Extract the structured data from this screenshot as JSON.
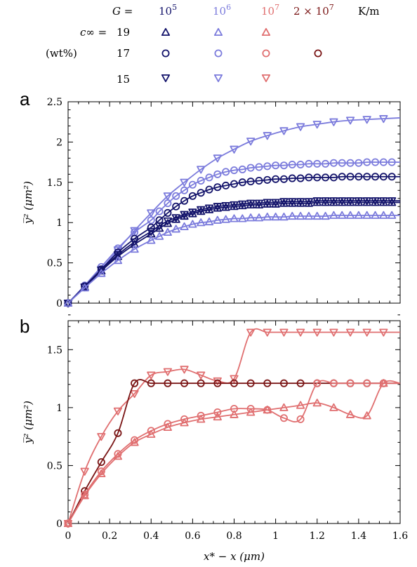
{
  "colors": {
    "G1e5": "#14146b",
    "G1e6": "#7b7bdc",
    "G1e7": "#e06f70",
    "G2e7": "#7a1515"
  },
  "legend": {
    "g_label": "G =",
    "g_values": [
      "10^5",
      "10^6",
      "10^7",
      "2 × 10^7"
    ],
    "g_unit": "K/m",
    "c_label": "c∞ = ",
    "c_unit": "(wt%)",
    "c_values": [
      "19",
      "17",
      "15"
    ]
  },
  "chart_data": [
    {
      "type": "line",
      "panel": "a",
      "ylabel": "y̅² (μm²)",
      "xlim": [
        0,
        1.6
      ],
      "ylim": [
        0,
        2.5
      ],
      "yticks": [
        "0",
        "0.5",
        "1",
        "1.5",
        "2",
        "2.5"
      ],
      "grid": false,
      "series": [
        {
          "G": "10^6",
          "c": "15",
          "marker": "tri-down",
          "x": [
            0,
            0.08,
            0.16,
            0.24,
            0.32,
            0.4,
            0.48,
            0.56,
            0.64,
            0.72,
            0.8,
            0.88,
            0.96,
            1.04,
            1.12,
            1.2,
            1.28,
            1.36,
            1.44,
            1.52,
            1.6
          ],
          "values": [
            0,
            0.2,
            0.42,
            0.66,
            0.9,
            1.12,
            1.33,
            1.5,
            1.66,
            1.8,
            1.91,
            2.01,
            2.08,
            2.14,
            2.19,
            2.22,
            2.25,
            2.27,
            2.28,
            2.29,
            2.3
          ]
        },
        {
          "G": "10^6",
          "c": "17",
          "marker": "circle",
          "x": [
            0,
            0.08,
            0.16,
            0.24,
            0.32,
            0.4,
            0.44,
            0.48,
            0.52,
            0.56,
            0.6,
            0.64,
            0.68,
            0.72,
            0.76,
            0.8,
            0.84,
            0.88,
            0.92,
            0.96,
            1.0,
            1.04,
            1.08,
            1.12,
            1.16,
            1.2,
            1.24,
            1.28,
            1.32,
            1.36,
            1.4,
            1.44,
            1.48,
            1.52,
            1.56,
            1.6
          ],
          "values": [
            0,
            0.22,
            0.45,
            0.68,
            0.88,
            1.03,
            1.14,
            1.24,
            1.33,
            1.4,
            1.47,
            1.52,
            1.56,
            1.6,
            1.63,
            1.65,
            1.66,
            1.68,
            1.69,
            1.7,
            1.71,
            1.71,
            1.72,
            1.72,
            1.73,
            1.73,
            1.73,
            1.74,
            1.74,
            1.74,
            1.74,
            1.75,
            1.75,
            1.75,
            1.75,
            1.75
          ]
        },
        {
          "G": "10^5",
          "c": "17",
          "marker": "circle",
          "x": [
            0,
            0.08,
            0.16,
            0.24,
            0.32,
            0.4,
            0.44,
            0.48,
            0.52,
            0.56,
            0.6,
            0.64,
            0.68,
            0.72,
            0.76,
            0.8,
            0.84,
            0.88,
            0.92,
            0.96,
            1.0,
            1.04,
            1.08,
            1.12,
            1.16,
            1.2,
            1.24,
            1.28,
            1.32,
            1.36,
            1.4,
            1.44,
            1.48,
            1.52,
            1.56,
            1.6
          ],
          "values": [
            0,
            0.21,
            0.42,
            0.63,
            0.8,
            0.94,
            1.03,
            1.12,
            1.2,
            1.27,
            1.33,
            1.37,
            1.41,
            1.44,
            1.46,
            1.48,
            1.5,
            1.51,
            1.52,
            1.53,
            1.54,
            1.54,
            1.55,
            1.55,
            1.56,
            1.56,
            1.56,
            1.56,
            1.57,
            1.57,
            1.57,
            1.57,
            1.57,
            1.57,
            1.57,
            1.57
          ]
        },
        {
          "G": "10^5",
          "c": "19",
          "marker": "tri-up",
          "x": [
            0,
            0.08,
            0.16,
            0.24,
            0.32,
            0.4,
            0.44,
            0.48,
            0.52,
            0.56,
            0.6,
            0.64,
            0.68,
            0.72,
            0.76,
            0.8,
            0.84,
            0.88,
            0.92,
            0.96,
            1.0,
            1.04,
            1.08,
            1.12,
            1.16,
            1.2,
            1.24,
            1.28,
            1.32,
            1.36,
            1.4,
            1.44,
            1.48,
            1.52,
            1.56,
            1.6
          ],
          "values": [
            0,
            0.2,
            0.4,
            0.58,
            0.73,
            0.86,
            0.93,
            0.99,
            1.04,
            1.08,
            1.11,
            1.14,
            1.16,
            1.18,
            1.19,
            1.2,
            1.21,
            1.22,
            1.22,
            1.23,
            1.23,
            1.24,
            1.24,
            1.24,
            1.24,
            1.25,
            1.25,
            1.25,
            1.25,
            1.25,
            1.25,
            1.25,
            1.25,
            1.25,
            1.25,
            1.25
          ]
        },
        {
          "G": "10^5",
          "c": "15",
          "marker": "tri-down",
          "x": [
            0,
            0.08,
            0.16,
            0.24,
            0.32,
            0.4,
            0.44,
            0.48,
            0.52,
            0.56,
            0.6,
            0.64,
            0.68,
            0.72,
            0.76,
            0.8,
            0.84,
            0.88,
            0.92,
            0.96,
            1.0,
            1.04,
            1.08,
            1.12,
            1.16,
            1.2,
            1.24,
            1.28,
            1.32,
            1.36,
            1.4,
            1.44,
            1.48,
            1.52,
            1.56,
            1.6
          ],
          "values": [
            0,
            0.2,
            0.41,
            0.6,
            0.76,
            0.89,
            0.96,
            1.02,
            1.06,
            1.1,
            1.13,
            1.16,
            1.18,
            1.2,
            1.21,
            1.22,
            1.23,
            1.24,
            1.24,
            1.25,
            1.25,
            1.26,
            1.26,
            1.26,
            1.26,
            1.27,
            1.27,
            1.27,
            1.27,
            1.27,
            1.27,
            1.27,
            1.27,
            1.27,
            1.27,
            1.27
          ]
        },
        {
          "G": "10^6",
          "c": "19",
          "marker": "tri-up",
          "x": [
            0,
            0.08,
            0.16,
            0.24,
            0.32,
            0.4,
            0.44,
            0.48,
            0.52,
            0.56,
            0.6,
            0.64,
            0.68,
            0.72,
            0.76,
            0.8,
            0.84,
            0.88,
            0.92,
            0.96,
            1.0,
            1.04,
            1.08,
            1.12,
            1.16,
            1.2,
            1.24,
            1.28,
            1.32,
            1.36,
            1.4,
            1.44,
            1.48,
            1.52,
            1.56,
            1.6
          ],
          "values": [
            0,
            0.19,
            0.37,
            0.53,
            0.67,
            0.78,
            0.83,
            0.88,
            0.92,
            0.95,
            0.98,
            1.0,
            1.01,
            1.03,
            1.04,
            1.05,
            1.05,
            1.06,
            1.06,
            1.07,
            1.07,
            1.07,
            1.08,
            1.08,
            1.08,
            1.08,
            1.08,
            1.09,
            1.09,
            1.09,
            1.09,
            1.09,
            1.09,
            1.09,
            1.09,
            1.09
          ]
        }
      ]
    },
    {
      "type": "line",
      "panel": "b",
      "xlabel": "x* − x (μm)",
      "ylabel": "y̅² (μm²)",
      "xlim": [
        0,
        1.6
      ],
      "ylim": [
        0,
        1.75
      ],
      "xticks": [
        "0",
        "0.2",
        "0.4",
        "0.6",
        "0.8",
        "1",
        "1.2",
        "1.4",
        "1.6"
      ],
      "yticks": [
        "0",
        "0.5",
        "1",
        "1.5"
      ],
      "grid": false,
      "series": [
        {
          "G": "10^7",
          "c": "15",
          "marker": "tri-down",
          "x": [
            0,
            0.08,
            0.16,
            0.24,
            0.32,
            0.4,
            0.48,
            0.56,
            0.64,
            0.72,
            0.8,
            0.88,
            0.96,
            1.04,
            1.12,
            1.2,
            1.28,
            1.36,
            1.44,
            1.52,
            1.6
          ],
          "values": [
            0,
            0.45,
            0.75,
            0.97,
            1.12,
            1.28,
            1.31,
            1.33,
            1.28,
            1.23,
            1.25,
            1.65,
            1.65,
            1.65,
            1.65,
            1.65,
            1.65,
            1.65,
            1.65,
            1.65,
            1.65
          ]
        },
        {
          "G": "2 × 10^7",
          "c": "17",
          "marker": "circle",
          "x": [
            0,
            0.08,
            0.16,
            0.24,
            0.32,
            0.4,
            0.48,
            0.56,
            0.64,
            0.72,
            0.8,
            0.88,
            0.96,
            1.04,
            1.12,
            1.2,
            1.28,
            1.36,
            1.44,
            1.52,
            1.6
          ],
          "values": [
            0,
            0.28,
            0.53,
            0.78,
            1.21,
            1.21,
            1.21,
            1.21,
            1.21,
            1.21,
            1.21,
            1.21,
            1.21,
            1.21,
            1.21,
            1.21,
            1.21,
            1.21,
            1.21,
            1.21,
            1.21
          ]
        },
        {
          "G": "10^7",
          "c": "17",
          "marker": "circle",
          "x": [
            0,
            0.08,
            0.16,
            0.24,
            0.32,
            0.4,
            0.48,
            0.56,
            0.64,
            0.72,
            0.8,
            0.88,
            0.96,
            1.04,
            1.12,
            1.2,
            1.28,
            1.36,
            1.44,
            1.52,
            1.6
          ],
          "values": [
            0,
            0.25,
            0.45,
            0.6,
            0.72,
            0.8,
            0.86,
            0.9,
            0.93,
            0.96,
            0.99,
            0.99,
            0.98,
            0.91,
            0.9,
            1.21,
            1.21,
            1.21,
            1.21,
            1.21,
            1.21
          ]
        },
        {
          "G": "10^7",
          "c": "19",
          "marker": "tri-up",
          "x": [
            0,
            0.08,
            0.16,
            0.24,
            0.32,
            0.4,
            0.48,
            0.56,
            0.64,
            0.72,
            0.8,
            0.88,
            0.96,
            1.04,
            1.12,
            1.2,
            1.28,
            1.36,
            1.44,
            1.52,
            1.6
          ],
          "values": [
            0,
            0.24,
            0.43,
            0.58,
            0.7,
            0.77,
            0.83,
            0.87,
            0.9,
            0.92,
            0.94,
            0.96,
            0.98,
            1.0,
            1.02,
            1.04,
            1.0,
            0.94,
            0.93,
            1.21,
            1.21
          ]
        }
      ]
    }
  ]
}
